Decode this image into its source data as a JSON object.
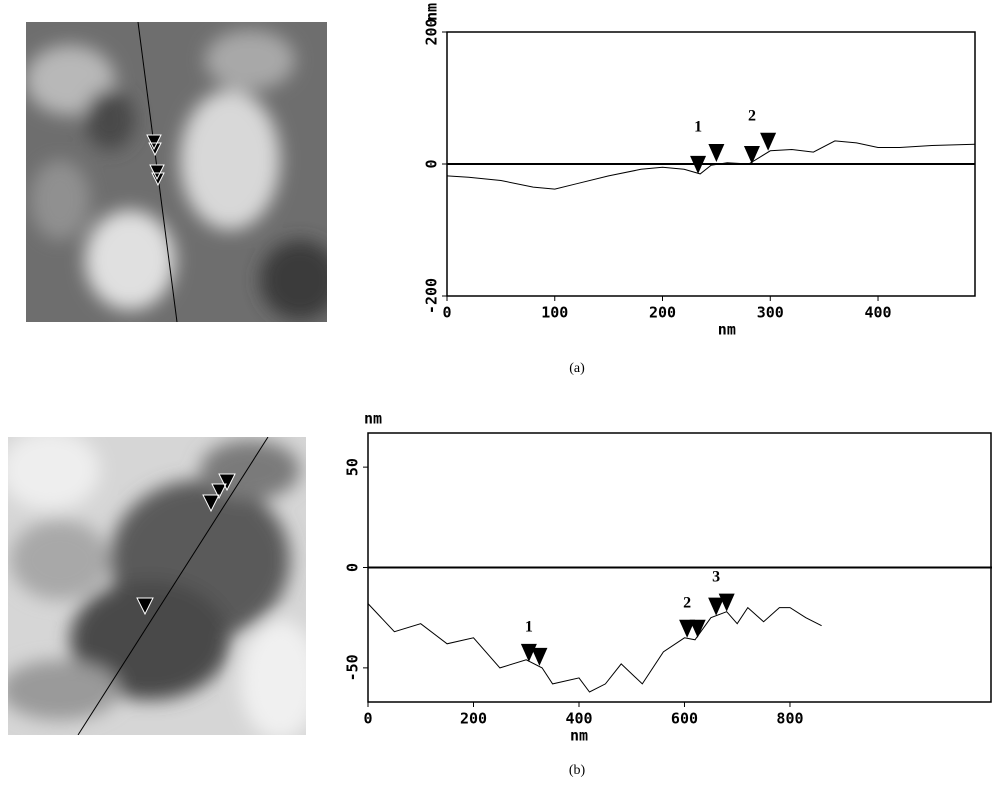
{
  "chart_data": [
    {
      "type": "line",
      "caption": "(a)",
      "xlabel": "nm",
      "ylabel": "nm",
      "xlim": [
        0,
        490
      ],
      "ylim": [
        -200,
        200
      ],
      "xticks": [
        0,
        100,
        200,
        300,
        400
      ],
      "yticks": [
        -200,
        0,
        200
      ],
      "zero_line": true,
      "color": "#000",
      "x": [
        0,
        20,
        50,
        80,
        100,
        120,
        150,
        180,
        200,
        220,
        235,
        245,
        260,
        280,
        290,
        300,
        320,
        340,
        360,
        380,
        400,
        420,
        450,
        490
      ],
      "values": [
        -18,
        -20,
        -25,
        -35,
        -38,
        -30,
        -18,
        -8,
        -5,
        -8,
        -15,
        -2,
        2,
        0,
        10,
        20,
        22,
        18,
        35,
        32,
        25,
        25,
        28,
        30
      ],
      "markers": {
        "x": [
          233,
          250,
          283,
          298
        ],
        "y": [
          -15,
          3,
          0,
          20
        ]
      },
      "marker_labels": [
        "1",
        "2"
      ]
    },
    {
      "type": "line",
      "caption": "(b)",
      "xlabel": "nm",
      "ylabel": "nm",
      "xlim": [
        0,
        1183
      ],
      "ylim": [
        -67,
        67
      ],
      "xticks": [
        0,
        200,
        400,
        600,
        800
      ],
      "yticks": [
        -50,
        0,
        50
      ],
      "zero_line": true,
      "color": "#000",
      "x": [
        0,
        50,
        100,
        150,
        200,
        250,
        300,
        330,
        350,
        400,
        420,
        450,
        480,
        520,
        560,
        600,
        620,
        650,
        680,
        700,
        720,
        750,
        780,
        800,
        830,
        860
      ],
      "values": [
        -18,
        -32,
        -28,
        -38,
        -35,
        -50,
        -46,
        -50,
        -58,
        -55,
        -62,
        -58,
        -48,
        -58,
        -42,
        -35,
        -36,
        -25,
        -22,
        -28,
        -20,
        -27,
        -20,
        -20,
        -25,
        -29
      ],
      "markers": {
        "x": [
          305,
          325,
          605,
          625,
          660,
          680
        ],
        "y": [
          -47,
          -49,
          -35,
          -35,
          -24,
          -22
        ]
      },
      "marker_labels": [
        "1",
        "2",
        "3"
      ]
    }
  ]
}
